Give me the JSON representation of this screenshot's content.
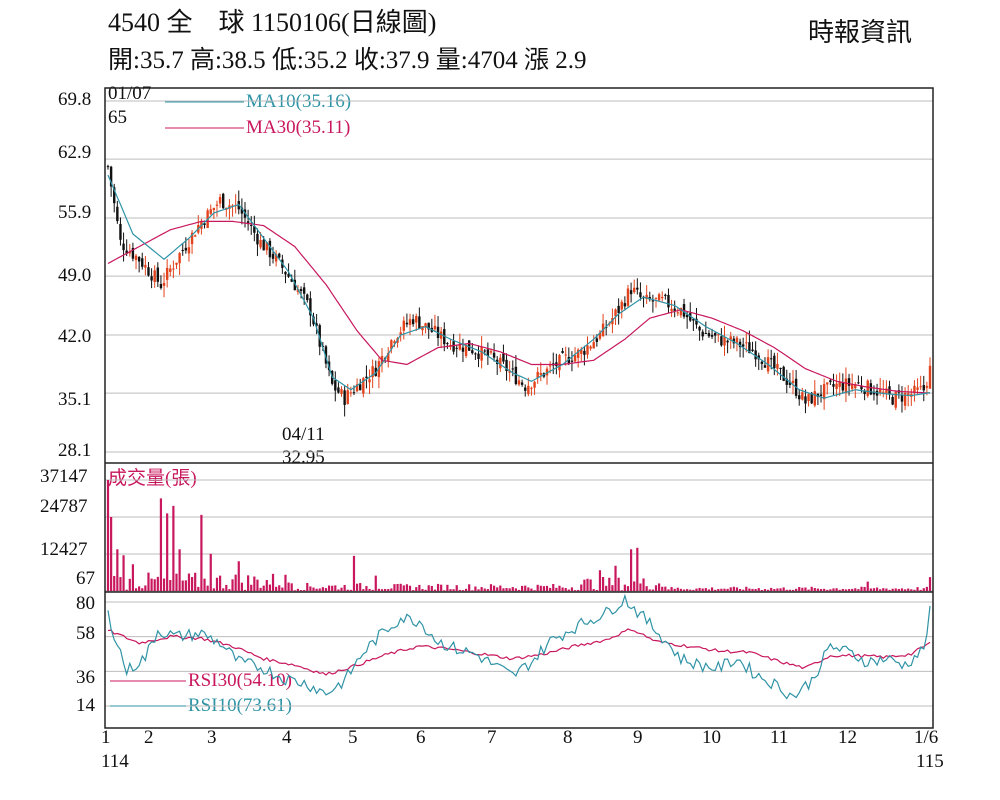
{
  "header": {
    "title": "4540 全　球 1150106(日線圖)",
    "source": "時報資訊",
    "quote": "開:35.7 高:38.5 低:35.2 收:37.9 量:4704 漲 2.9"
  },
  "colors": {
    "up": "#e2431c",
    "down": "#111111",
    "ma10": "#2f93a6",
    "ma30": "#c8175d",
    "volume": "#c8175d",
    "rsi30": "#c8175d",
    "rsi10": "#2f93a6",
    "grid": "#bdbdbd"
  },
  "chart_data": {
    "type": "candlestick",
    "price_axis": {
      "ticks": [
        "69.8",
        "62.9",
        "55.9",
        "49.0",
        "42.0",
        "35.1",
        "28.1"
      ],
      "range": [
        28.1,
        69.8
      ]
    },
    "volume_axis": {
      "label": "成交量(張)",
      "ticks": [
        "37147",
        "24787",
        "12427",
        "67"
      ],
      "range": [
        67,
        37147
      ]
    },
    "rsi_axis": {
      "ticks": [
        "80",
        "58",
        "36",
        "14"
      ],
      "range": [
        14,
        80
      ]
    },
    "x_axis": {
      "months": [
        "1",
        "2",
        "3",
        "4",
        "5",
        "6",
        "7",
        "8",
        "9",
        "10",
        "11",
        "12",
        "1/6"
      ],
      "year_start": "114",
      "year_end": "115"
    },
    "legend": {
      "ma10": "MA10(35.16)",
      "ma30": "MA30(35.11)",
      "rsi30": "RSI30(54.10)",
      "rsi10": "RSI10(73.61)"
    },
    "annotations": {
      "high": {
        "date": "01/07",
        "value": "65"
      },
      "low": {
        "date": "04/11",
        "value": "32.95"
      }
    },
    "close_anchors": [
      [
        0,
        62
      ],
      [
        4,
        53
      ],
      [
        10,
        51
      ],
      [
        17,
        48
      ],
      [
        22,
        51
      ],
      [
        29,
        55
      ],
      [
        36,
        58
      ],
      [
        42,
        57
      ],
      [
        49,
        53
      ],
      [
        54,
        51
      ],
      [
        60,
        48
      ],
      [
        65,
        45
      ],
      [
        68,
        41
      ],
      [
        72,
        36
      ],
      [
        76,
        34.5
      ],
      [
        80,
        36
      ],
      [
        86,
        38
      ],
      [
        92,
        42
      ],
      [
        98,
        44
      ],
      [
        104,
        42.5
      ],
      [
        110,
        41
      ],
      [
        116,
        40.5
      ],
      [
        122,
        39.5
      ],
      [
        128,
        38
      ],
      [
        134,
        36
      ],
      [
        140,
        37.5
      ],
      [
        146,
        39
      ],
      [
        152,
        40
      ],
      [
        158,
        42
      ],
      [
        164,
        45
      ],
      [
        168,
        47.5
      ],
      [
        172,
        46
      ],
      [
        178,
        46
      ],
      [
        184,
        45
      ],
      [
        190,
        42.5
      ],
      [
        196,
        41.5
      ],
      [
        202,
        41
      ],
      [
        208,
        40
      ],
      [
        214,
        38
      ],
      [
        220,
        36
      ],
      [
        224,
        34
      ],
      [
        228,
        35
      ],
      [
        234,
        36
      ],
      [
        240,
        36.2
      ],
      [
        246,
        35.5
      ],
      [
        252,
        34.5
      ],
      [
        258,
        35
      ],
      [
        262,
        35.5
      ],
      [
        264,
        37.9
      ]
    ],
    "ma10_anchors": [
      [
        0,
        61
      ],
      [
        8,
        54
      ],
      [
        18,
        51
      ],
      [
        26,
        53.5
      ],
      [
        34,
        56.5
      ],
      [
        42,
        57.5
      ],
      [
        50,
        53.5
      ],
      [
        58,
        49.5
      ],
      [
        66,
        44
      ],
      [
        72,
        37
      ],
      [
        78,
        35.5
      ],
      [
        86,
        37.5
      ],
      [
        94,
        42
      ],
      [
        102,
        43
      ],
      [
        110,
        41.5
      ],
      [
        120,
        40
      ],
      [
        130,
        37.5
      ],
      [
        136,
        36.5
      ],
      [
        146,
        38.5
      ],
      [
        156,
        41.5
      ],
      [
        164,
        44.5
      ],
      [
        172,
        46.5
      ],
      [
        182,
        45.5
      ],
      [
        192,
        43
      ],
      [
        202,
        41
      ],
      [
        212,
        38.5
      ],
      [
        222,
        35.5
      ],
      [
        230,
        34.5
      ],
      [
        240,
        35.5
      ],
      [
        250,
        35
      ],
      [
        258,
        34.8
      ],
      [
        264,
        35.16
      ]
    ],
    "ma30_anchors": [
      [
        0,
        50.5
      ],
      [
        10,
        52.5
      ],
      [
        20,
        54.5
      ],
      [
        30,
        55.5
      ],
      [
        40,
        55.5
      ],
      [
        50,
        55
      ],
      [
        60,
        52.5
      ],
      [
        70,
        48
      ],
      [
        80,
        42.5
      ],
      [
        88,
        39
      ],
      [
        96,
        38.5
      ],
      [
        106,
        40.5
      ],
      [
        116,
        41
      ],
      [
        126,
        40
      ],
      [
        136,
        38.5
      ],
      [
        146,
        38.5
      ],
      [
        156,
        39
      ],
      [
        166,
        41.5
      ],
      [
        174,
        44
      ],
      [
        184,
        45
      ],
      [
        194,
        44
      ],
      [
        204,
        42.5
      ],
      [
        214,
        40.5
      ],
      [
        224,
        38
      ],
      [
        234,
        36.5
      ],
      [
        244,
        35.8
      ],
      [
        254,
        35.3
      ],
      [
        264,
        35.11
      ]
    ],
    "volume_spikes": [
      [
        0,
        37147
      ],
      [
        1,
        24787
      ],
      [
        3,
        14000
      ],
      [
        5,
        12000
      ],
      [
        8,
        9000
      ],
      [
        17,
        31000
      ],
      [
        19,
        26000
      ],
      [
        21,
        28500
      ],
      [
        23,
        14000
      ],
      [
        30,
        25500
      ],
      [
        33,
        12500
      ],
      [
        42,
        10000
      ],
      [
        79,
        11800
      ],
      [
        86,
        5200
      ],
      [
        158,
        7000
      ],
      [
        163,
        8500
      ],
      [
        168,
        14000
      ],
      [
        170,
        14500
      ],
      [
        244,
        3200
      ],
      [
        264,
        4704
      ]
    ],
    "rsi10_anchors": [
      [
        0,
        72
      ],
      [
        6,
        36
      ],
      [
        12,
        45
      ],
      [
        16,
        62
      ],
      [
        22,
        58
      ],
      [
        30,
        60
      ],
      [
        36,
        54
      ],
      [
        42,
        42
      ],
      [
        50,
        38
      ],
      [
        56,
        32
      ],
      [
        64,
        28
      ],
      [
        70,
        22
      ],
      [
        76,
        30
      ],
      [
        82,
        48
      ],
      [
        88,
        60
      ],
      [
        94,
        70
      ],
      [
        100,
        68
      ],
      [
        106,
        55
      ],
      [
        112,
        50
      ],
      [
        118,
        47
      ],
      [
        124,
        40
      ],
      [
        130,
        33
      ],
      [
        136,
        42
      ],
      [
        142,
        55
      ],
      [
        148,
        62
      ],
      [
        154,
        68
      ],
      [
        160,
        73
      ],
      [
        166,
        82
      ],
      [
        172,
        70
      ],
      [
        178,
        58
      ],
      [
        184,
        44
      ],
      [
        190,
        40
      ],
      [
        196,
        38
      ],
      [
        202,
        44
      ],
      [
        208,
        34
      ],
      [
        214,
        28
      ],
      [
        220,
        20
      ],
      [
        226,
        30
      ],
      [
        232,
        52
      ],
      [
        238,
        48
      ],
      [
        244,
        42
      ],
      [
        250,
        44
      ],
      [
        256,
        40
      ],
      [
        262,
        50
      ],
      [
        264,
        73.61
      ]
    ],
    "rsi30_anchors": [
      [
        0,
        62
      ],
      [
        10,
        54
      ],
      [
        20,
        58
      ],
      [
        30,
        57
      ],
      [
        40,
        52
      ],
      [
        50,
        44
      ],
      [
        60,
        40
      ],
      [
        70,
        34
      ],
      [
        80,
        40
      ],
      [
        90,
        47
      ],
      [
        100,
        52
      ],
      [
        110,
        50
      ],
      [
        120,
        47
      ],
      [
        130,
        44
      ],
      [
        140,
        47
      ],
      [
        150,
        52
      ],
      [
        160,
        56
      ],
      [
        168,
        63
      ],
      [
        176,
        55
      ],
      [
        186,
        52
      ],
      [
        196,
        49
      ],
      [
        206,
        48
      ],
      [
        216,
        42
      ],
      [
        224,
        38
      ],
      [
        232,
        46
      ],
      [
        240,
        46
      ],
      [
        250,
        45
      ],
      [
        258,
        47
      ],
      [
        264,
        54.1
      ]
    ]
  }
}
